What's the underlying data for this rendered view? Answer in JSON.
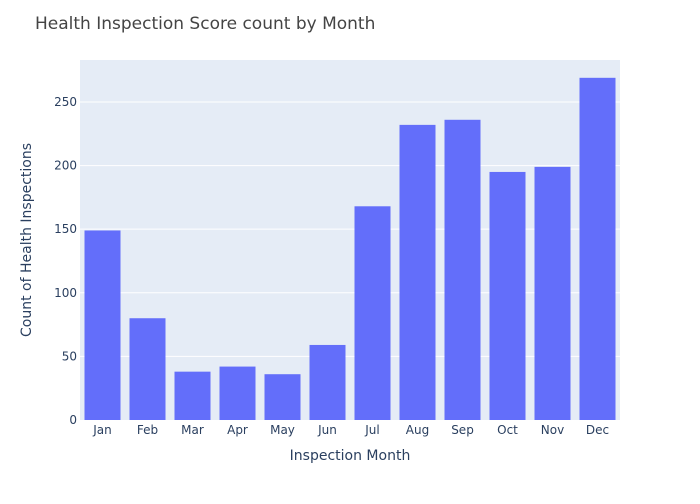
{
  "chart_data": {
    "type": "bar",
    "title": "Health Inspection Score count by Month",
    "xlabel": "Inspection Month",
    "ylabel": "Count of Health Inspections",
    "categories": [
      "Jan",
      "Feb",
      "Mar",
      "Apr",
      "May",
      "Jun",
      "Jul",
      "Aug",
      "Sep",
      "Oct",
      "Nov",
      "Dec"
    ],
    "values": [
      149,
      80,
      38,
      42,
      36,
      59,
      168,
      232,
      236,
      195,
      199,
      269
    ],
    "ylim": [
      0,
      283
    ],
    "yticks": [
      0,
      50,
      100,
      150,
      200,
      250
    ],
    "grid": true,
    "legend": "none",
    "colors": {
      "bar": "#636efa",
      "plot_bg": "#e5ecf6",
      "grid": "#ffffff",
      "text": "#2a3f5f",
      "title": "#444444"
    }
  }
}
